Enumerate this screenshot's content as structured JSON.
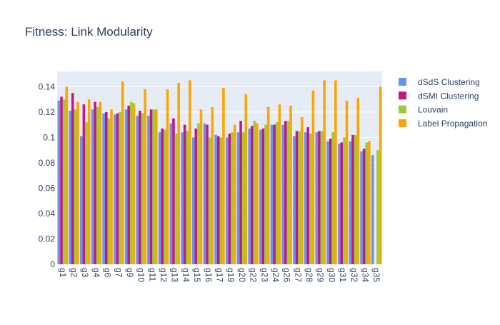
{
  "chart_data": {
    "type": "bar",
    "title": "Fitness: Link Modularity",
    "xlabel": "",
    "ylabel": "",
    "ylim": [
      0,
      0.152
    ],
    "yticks": [
      0,
      0.02,
      0.04,
      0.06,
      0.08,
      0.1,
      0.12,
      0.14
    ],
    "ytick_labels": [
      "0",
      "0.02",
      "0.04",
      "0.06",
      "0.08",
      "0.1",
      "0.12",
      "0.14"
    ],
    "grid": true,
    "legend_position": "top-right",
    "categories": [
      "g1",
      "g2",
      "g3",
      "g4",
      "g6",
      "g7",
      "g9",
      "g10",
      "g11",
      "g12",
      "g13",
      "g14",
      "g15",
      "g16",
      "g17",
      "g19",
      "g20",
      "g22",
      "g23",
      "g24",
      "g26",
      "g27",
      "g28",
      "g29",
      "g30",
      "g31",
      "g32",
      "g34",
      "g35"
    ],
    "series": [
      {
        "name": "dSdS Clustering",
        "color": "#6495ED",
        "values": [
          0.129,
          0.121,
          0.101,
          0.122,
          0.119,
          0.118,
          0.122,
          0.117,
          0.117,
          0.104,
          0.111,
          0.104,
          0.1,
          0.111,
          0.102,
          0.1,
          0.104,
          0.107,
          0.106,
          0.11,
          0.11,
          0.101,
          0.104,
          0.104,
          0.097,
          0.095,
          0.097,
          0.089,
          0.086
        ]
      },
      {
        "name": "dSMI Clustering",
        "color": "#C71585",
        "values": [
          0.132,
          0.135,
          0.126,
          0.128,
          0.12,
          0.119,
          0.125,
          0.121,
          0.122,
          0.107,
          0.115,
          0.11,
          0.107,
          0.11,
          0.101,
          0.103,
          0.113,
          0.109,
          0.107,
          0.11,
          0.113,
          0.105,
          0.108,
          0.105,
          0.099,
          0.096,
          0.102,
          0.091,
          0.0
        ]
      },
      {
        "name": "Louvain",
        "color": "#9ACD32",
        "values": [
          0.13,
          0.122,
          0.112,
          0.124,
          0.115,
          0.12,
          0.128,
          0.119,
          0.122,
          0.106,
          0.103,
          0.105,
          0.111,
          0.1,
          0.1,
          0.104,
          0.104,
          0.113,
          0.11,
          0.112,
          0.113,
          0.105,
          0.103,
          0.105,
          0.104,
          0.1,
          0.102,
          0.096,
          0.09
        ]
      },
      {
        "name": "Label Propagation",
        "color": "#FFA500",
        "values": [
          0.14,
          0.128,
          0.13,
          0.128,
          0.122,
          0.144,
          0.127,
          0.138,
          0.122,
          0.138,
          0.143,
          0.145,
          0.122,
          0.124,
          0.139,
          0.11,
          0.134,
          0.111,
          0.124,
          0.126,
          0.125,
          0.116,
          0.137,
          0.145,
          0.145,
          0.129,
          0.131,
          0.097,
          0.14
        ]
      }
    ]
  }
}
